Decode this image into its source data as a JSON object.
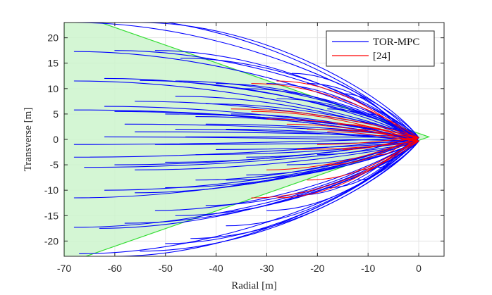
{
  "chart_data": {
    "type": "line",
    "title": "",
    "xlabel": "Radial [m]",
    "ylabel": "Transverse [m]",
    "xlim": [
      -70,
      5
    ],
    "ylim": [
      -23,
      23
    ],
    "xticks": [
      -70,
      -60,
      -50,
      -40,
      -30,
      -20,
      -10,
      0
    ],
    "yticks": [
      -20,
      -15,
      -10,
      -5,
      0,
      5,
      10,
      15,
      20
    ],
    "xtick_labels": [
      "-70",
      "-60",
      "-50",
      "-40",
      "-30",
      "-20",
      "-10",
      "0"
    ],
    "ytick_labels": [
      "-20",
      "-15",
      "-10",
      "-5",
      "0",
      "5",
      "10",
      "15",
      "20"
    ],
    "grid": true,
    "legend_position": "top-right",
    "legend": [
      {
        "label": "TOR-MPC",
        "color": "#0000ff"
      },
      {
        "label": "[24]",
        "color": "#ff0000"
      }
    ],
    "cone": {
      "fill": "#ccf5cc",
      "edge": "#33dd33",
      "vertices": [
        [
          2,
          0.5
        ],
        [
          -70,
          25.5
        ],
        [
          -70,
          -24.5
        ]
      ]
    },
    "target": [
      0,
      0
    ],
    "series": [
      {
        "name": "TOR-MPC",
        "color": "#0000ff",
        "linewidth": 1.1,
        "starts": [
          [
            -68,
            23
          ],
          [
            -62,
            24
          ],
          [
            -55,
            23
          ],
          [
            -68,
            17.3
          ],
          [
            -60,
            17.5
          ],
          [
            -52,
            17.5
          ],
          [
            -47,
            16
          ],
          [
            -68,
            11.5
          ],
          [
            -62,
            12
          ],
          [
            -55,
            11.6
          ],
          [
            -48,
            11.5
          ],
          [
            -40,
            11
          ],
          [
            -35,
            10
          ],
          [
            -30,
            11
          ],
          [
            -68,
            5.8
          ],
          [
            -62,
            6.5
          ],
          [
            -56,
            7.5
          ],
          [
            -48,
            8.5
          ],
          [
            -42,
            7
          ],
          [
            -37,
            5
          ],
          [
            -28,
            8
          ],
          [
            -60,
            5.5
          ],
          [
            -50,
            5
          ],
          [
            -44,
            4.5
          ],
          [
            -68,
            -1
          ],
          [
            -62,
            0.5
          ],
          [
            -56,
            1.5
          ],
          [
            -48,
            2
          ],
          [
            -42,
            3
          ],
          [
            -38,
            2
          ],
          [
            -68,
            -3.5
          ],
          [
            -66,
            -5.5
          ],
          [
            -60,
            -5
          ],
          [
            -56,
            -6
          ],
          [
            -50,
            -4.5
          ],
          [
            -44,
            -3
          ],
          [
            -68,
            -11.5
          ],
          [
            -62,
            -10
          ],
          [
            -56,
            -10.5
          ],
          [
            -50,
            -9.5
          ],
          [
            -44,
            -8
          ],
          [
            -38,
            -8
          ],
          [
            -34,
            -7
          ],
          [
            -68,
            -17.3
          ],
          [
            -63,
            -17.5
          ],
          [
            -58,
            -16.5
          ],
          [
            -52,
            -14
          ],
          [
            -48,
            -15
          ],
          [
            -42,
            -13
          ],
          [
            -67,
            -22.5
          ],
          [
            -60,
            -23
          ],
          [
            -55,
            -22
          ],
          [
            -50,
            -20.5
          ],
          [
            -45,
            -19.5
          ],
          [
            -38,
            -17
          ],
          [
            -30,
            -14
          ],
          [
            -24,
            -11
          ],
          [
            -18,
            -9.5
          ],
          [
            -12,
            -8
          ],
          [
            -8,
            -5.5
          ],
          [
            -58,
            3
          ],
          [
            -52,
            -1
          ],
          [
            -46,
            0.5
          ],
          [
            -40,
            -2
          ],
          [
            -34,
            -3.5
          ],
          [
            -26,
            -5
          ],
          [
            -20,
            -3
          ],
          [
            -15,
            9
          ],
          [
            -22,
            11
          ],
          [
            -25,
            13
          ],
          [
            -18,
            6
          ],
          [
            -10,
            5
          ]
        ],
        "x_end": 0,
        "y_end": 0
      },
      {
        "name": "[24]",
        "color": "#ff0000",
        "linewidth": 1.0,
        "starts": [
          [
            -33,
            11
          ],
          [
            -28,
            11.5
          ],
          [
            -37,
            6
          ],
          [
            -33,
            5.5
          ],
          [
            -30,
            4
          ],
          [
            -26,
            3
          ],
          [
            -22,
            2
          ],
          [
            -18,
            1.5
          ],
          [
            -20,
            -1
          ],
          [
            -24,
            -2
          ],
          [
            -15,
            -2
          ],
          [
            -33,
            -11.5
          ],
          [
            -28,
            -11.5
          ],
          [
            -22,
            -8
          ],
          [
            -18,
            -5
          ],
          [
            -12,
            -6
          ],
          [
            -30,
            -6
          ],
          [
            -8,
            -3
          ],
          [
            -16,
            3
          ],
          [
            -12,
            2
          ]
        ],
        "x_end": 0,
        "y_end": 0
      }
    ]
  }
}
